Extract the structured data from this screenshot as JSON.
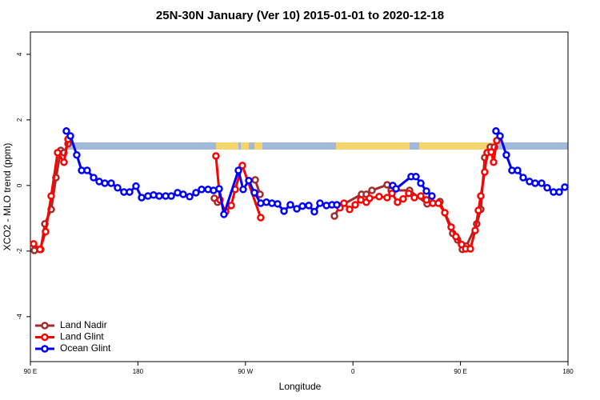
{
  "chart_data": {
    "type": "line",
    "title": "25N-30N January (Ver 10)   2015-01-01 to 2020-12-18",
    "x_label": "Longitude",
    "y_label": "XCO2 - MLO trend (ppm)",
    "xlim": [
      90,
      540
    ],
    "ylim": [
      -5.37,
      4.68
    ],
    "xticks": [
      {
        "value": 90,
        "label": "90 E"
      },
      180,
      {
        "value": 270,
        "label": "90 W"
      },
      {
        "value": 360,
        "label": "0"
      },
      {
        "value": 450,
        "label": "90 E"
      },
      {
        "value": 540,
        "label": "180"
      }
    ],
    "yticks": [
      -4,
      -2,
      0,
      2,
      4
    ],
    "legend_position": "bottom-left",
    "series": [
      {
        "name": "Land Nadir",
        "color": "#a52a2a",
        "x": [
          93.3,
          98.7,
          102.1,
          107.4,
          111.4,
          115.4,
          118.1,
          121.5,
          null,
          244.0,
          246.7,
          null,
          278.2,
          282.2,
          null,
          344.5,
          349.1,
          367.2,
          371.2,
          375.9,
          388.6,
          392.0,
          407.4,
          422.1,
          432.8,
          443.5,
          447.6,
          451.6,
          454.9,
          463.6,
          467.0,
          470.3,
          475.0,
          478.4
        ],
        "values": [
          -1.98,
          -1.95,
          -1.17,
          -0.73,
          0.24,
          1.07,
          1.0,
          1.27,
          null,
          -0.39,
          -0.51,
          null,
          0.17,
          -0.27,
          null,
          -0.93,
          -0.63,
          -0.27,
          -0.27,
          -0.15,
          0.02,
          -0.15,
          -0.15,
          -0.56,
          -0.49,
          -1.46,
          -1.66,
          -1.95,
          -1.85,
          -1.17,
          -0.73,
          0.85,
          1.17,
          1.17
        ]
      },
      {
        "name": "Land Glint",
        "color": "#ff0000",
        "x": [
          92.7,
          98.0,
          102.7,
          107.4,
          112.8,
          118.1,
          121.5,
          null,
          245.3,
          248.7,
          253.4,
          258.1,
          261.4,
          267.4,
          282.8,
          null,
          349.1,
          352.5,
          357.2,
          361.9,
          366.5,
          371.2,
          373.9,
          381.9,
          388.6,
          392.7,
          397.3,
          402.0,
          406.7,
          411.4,
          416.8,
          421.5,
          426.8,
          431.5,
          436.9,
          442.2,
          446.2,
          450.9,
          454.3,
          458.3,
          462.3,
          465.0,
          467.0,
          470.3,
          472.3,
          475.7,
          477.7,
          480.4
        ],
        "values": [
          -1.78,
          -1.95,
          -1.41,
          -0.32,
          1.0,
          0.71,
          1.41,
          null,
          0.9,
          -0.44,
          -0.8,
          -0.61,
          -0.12,
          0.61,
          -0.98,
          null,
          -0.68,
          -0.54,
          -0.73,
          -0.59,
          -0.44,
          -0.51,
          -0.39,
          -0.34,
          -0.37,
          -0.24,
          -0.51,
          -0.41,
          -0.24,
          -0.37,
          -0.32,
          -0.44,
          -0.54,
          -0.54,
          -0.83,
          -1.27,
          -1.56,
          -1.8,
          -1.93,
          -1.93,
          -1.37,
          -0.76,
          -0.32,
          0.41,
          1.0,
          1.02,
          0.71,
          1.37
        ]
      },
      {
        "name": "Ocean Glint",
        "color": "#0000ff",
        "x": [
          120.1,
          123.5,
          128.8,
          132.9,
          137.5,
          142.9,
          147.6,
          152.3,
          157.6,
          163.0,
          168.3,
          173.0,
          178.4,
          183.1,
          188.4,
          193.1,
          197.8,
          203.2,
          207.9,
          213.2,
          217.9,
          223.3,
          228.6,
          233.3,
          238.7,
          243.3,
          248.0,
          252.0,
          264.1,
          268.1,
          272.8,
          277.5,
          282.8,
          287.5,
          292.2,
          296.9,
          302.3,
          307.6,
          313.0,
          317.7,
          323.0,
          327.7,
          332.4,
          337.8,
          342.4,
          346.5,
          null,
          393.3,
          396.0,
          408.7,
          412.7,
          416.8,
          421.5,
          426.1,
          null,
          479.7,
          483.1,
          488.4,
          493.1,
          497.8,
          502.5,
          507.8,
          512.5,
          517.9,
          522.6,
          527.9,
          532.6,
          537.3
        ],
        "values": [
          1.66,
          1.51,
          0.93,
          0.46,
          0.46,
          0.24,
          0.12,
          0.07,
          0.07,
          -0.07,
          -0.2,
          -0.2,
          -0.02,
          -0.37,
          -0.32,
          -0.29,
          -0.32,
          -0.32,
          -0.32,
          -0.22,
          -0.27,
          -0.34,
          -0.22,
          -0.12,
          -0.12,
          -0.15,
          -0.1,
          -0.88,
          0.46,
          -0.12,
          0.15,
          -0.22,
          -0.54,
          -0.51,
          -0.54,
          -0.56,
          -0.78,
          -0.59,
          -0.71,
          -0.63,
          -0.61,
          -0.8,
          -0.54,
          -0.61,
          -0.59,
          -0.59,
          null,
          0,
          -0.1,
          0.27,
          0.27,
          0.07,
          -0.17,
          -0.32,
          null,
          1.66,
          1.51,
          0.93,
          0.46,
          0.46,
          0.24,
          0.12,
          0.07,
          0.07,
          -0.07,
          -0.2,
          -0.2,
          -0.05
        ]
      }
    ]
  }
}
